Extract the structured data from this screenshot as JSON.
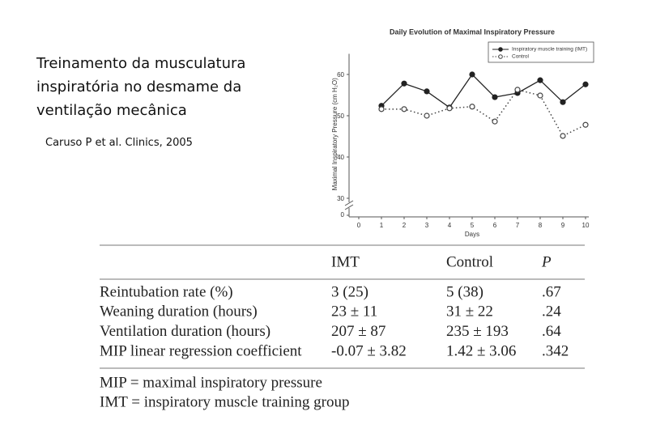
{
  "slide": {
    "title_lines": [
      "Treinamento da musculatura",
      "inspiratória no desmame da",
      "ventilação mecânica"
    ],
    "citation": "Caruso P et al. Clinics, 2005"
  },
  "chart_data": {
    "type": "line",
    "title": "Daily Evolution of Maximal Inspiratory Pressure",
    "xlabel": "Days",
    "ylabel": "Maximal Inspiratory Pressure (cm H₂O)",
    "x": [
      1,
      2,
      3,
      4,
      5,
      6,
      7,
      8,
      9,
      10
    ],
    "series": [
      {
        "name": "Inspiratory muscle training (IMT)",
        "color": "#222222",
        "marker": "filled",
        "linestyle": "solid",
        "values": [
          52.4,
          57.8,
          55.9,
          52,
          60,
          54.5,
          55.5,
          58.6,
          53.3,
          57.6
        ]
      },
      {
        "name": "Control",
        "color": "#444444",
        "marker": "open",
        "linestyle": "dotted",
        "values": [
          51.6,
          51.6,
          50,
          51.8,
          52.2,
          48.6,
          56.3,
          54.9,
          45.1,
          47.8
        ]
      }
    ],
    "xlim": [
      0,
      10
    ],
    "xticks": [
      0,
      1,
      2,
      3,
      4,
      5,
      6,
      7,
      8,
      9,
      10
    ],
    "ylim": [
      30,
      65
    ],
    "yticks": [
      30,
      40,
      50,
      60
    ],
    "y_break_tick": 0,
    "legend": "upper right"
  },
  "table": {
    "columns": [
      "IMT",
      "Control",
      "P"
    ],
    "rows": [
      [
        "Reintubation rate (%)",
        "3 (25)",
        "5 (38)",
        ".67"
      ],
      [
        "Weaning duration (hours)",
        "23 ± 11",
        "31 ± 22",
        ".24"
      ],
      [
        "Ventilation duration (hours)",
        "207 ± 87",
        "235 ± 193",
        ".64"
      ],
      [
        "MIP linear regression coefficient",
        "-0.07 ± 3.82",
        "1.42 ± 3.06",
        ".342"
      ]
    ],
    "footnotes": [
      "MIP = maximal inspiratory pressure",
      "IMT = inspiratory muscle training group"
    ]
  }
}
